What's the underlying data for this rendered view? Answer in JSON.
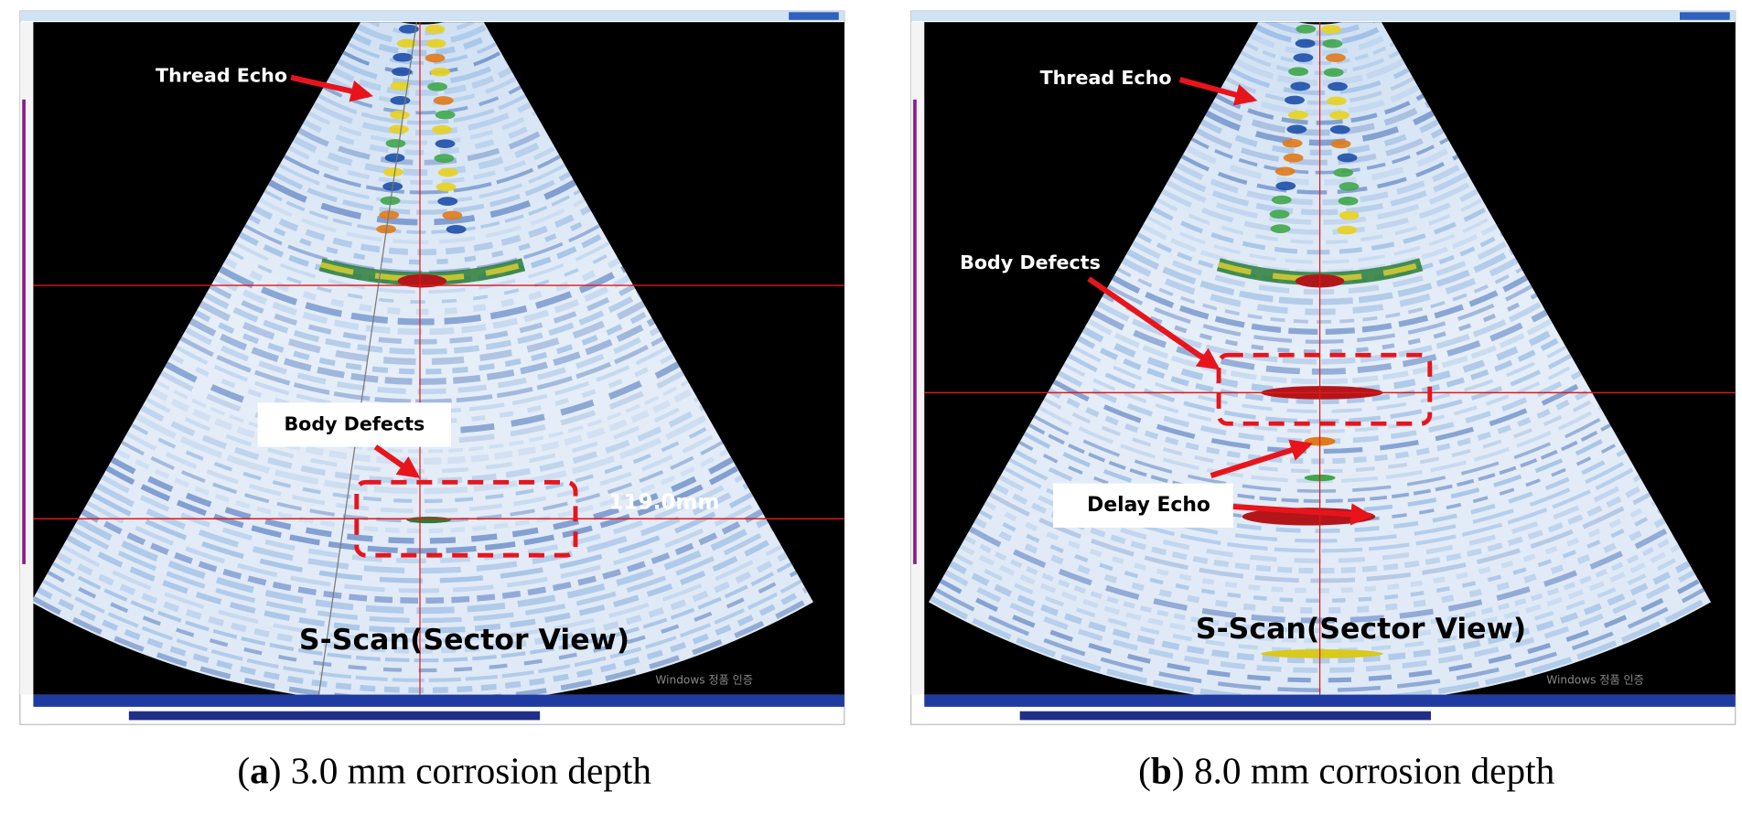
{
  "panels": [
    {
      "annotations": {
        "thread": "Thread Echo",
        "body": "Body Defects",
        "measure": "119.0mm",
        "view": "S-Scan(Sector View)",
        "watermark": "Windows 정품 인증"
      },
      "caption": {
        "prefix": "(",
        "letter": "a",
        "suffix": ") 3.0 mm corrosion depth"
      }
    },
    {
      "annotations": {
        "thread": "Thread Echo",
        "body": "Body Defects",
        "delay": "Delay Echo",
        "view": "S-Scan(Sector View)",
        "watermark": "Windows 정품 인증"
      },
      "caption": {
        "prefix": "(",
        "letter": "b",
        "suffix": ") 8.0 mm corrosion depth"
      }
    }
  ]
}
